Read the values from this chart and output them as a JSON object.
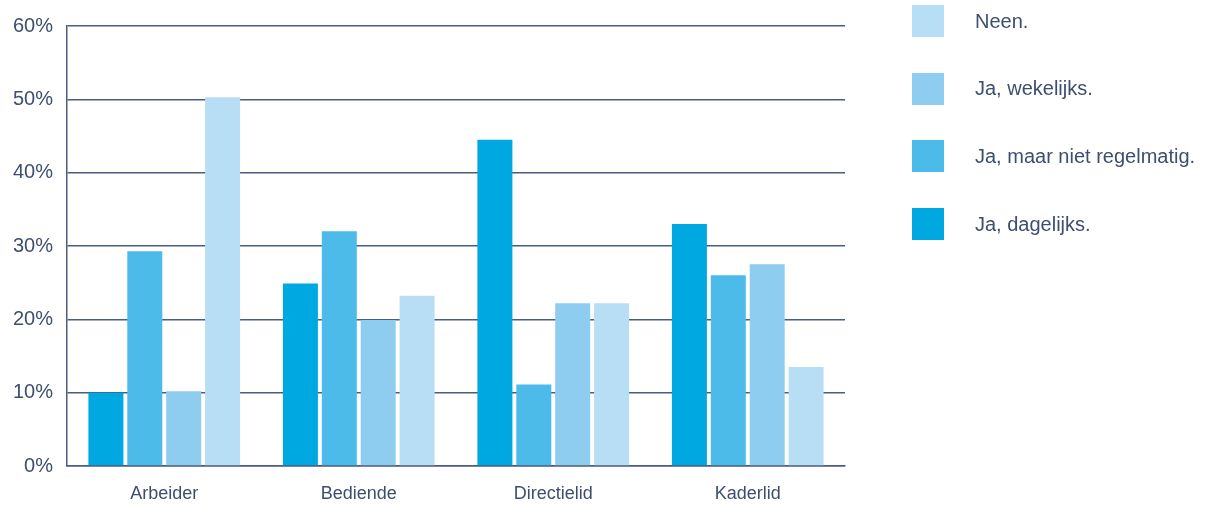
{
  "chart_data": {
    "type": "bar",
    "categories": [
      "Arbeider",
      "Bediende",
      "Directielid",
      "Kaderlid"
    ],
    "series": [
      {
        "name": "Ja, dagelijks.",
        "color": "#00a8e1",
        "values": [
          10.0,
          24.9,
          44.5,
          33.0
        ]
      },
      {
        "name": "Ja, maar niet regelmatig.",
        "color": "#4dbbea",
        "values": [
          29.3,
          32.0,
          11.1,
          26.0
        ]
      },
      {
        "name": "Ja, wekelijks.",
        "color": "#8fcdf0",
        "values": [
          10.2,
          19.9,
          22.2,
          27.5
        ]
      },
      {
        "name": "Neen.",
        "color": "#b8def5",
        "values": [
          50.3,
          23.2,
          22.2,
          13.5
        ]
      }
    ],
    "ylim": [
      0,
      60
    ],
    "yticks": [
      {
        "value": 0,
        "label": "0%"
      },
      {
        "value": 10,
        "label": "10%"
      },
      {
        "value": 20,
        "label": "20%"
      },
      {
        "value": 30,
        "label": "30%"
      },
      {
        "value": 40,
        "label": "40%"
      },
      {
        "value": 50,
        "label": "50%"
      },
      {
        "value": 60,
        "label": "60%"
      }
    ],
    "grid": "y",
    "legend": "right"
  }
}
